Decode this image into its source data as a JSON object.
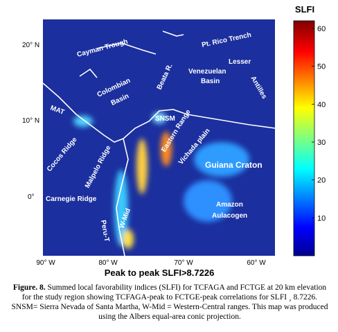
{
  "map": {
    "labels": [
      "Cayman Trough",
      "Pt. Rico Trench",
      "Lesser",
      "Antilles",
      "Venezuelan",
      "Basin",
      "Beata R.",
      "Colombian",
      "Basin",
      "MAT",
      "SNSM",
      "Cocos Ridge",
      "Malpelo Ridge",
      "Eastern Range",
      "Vichada plain",
      "Guiana Craton",
      "Carnegie Ridge",
      "Amazon",
      "Aulacogen",
      "Peru-T",
      "W-Mid"
    ],
    "lat_ticks": [
      "20° N",
      "10° N",
      "0°"
    ],
    "lon_ticks": [
      "90° W",
      "80° W",
      "70° W",
      "60° W"
    ],
    "bottom_label": "Peak to peak  SLFI>8.7226"
  },
  "colorbar": {
    "title": "SLFI",
    "lim": [
      0,
      62
    ],
    "ticks": [
      10,
      20,
      30,
      40,
      50,
      60
    ]
  },
  "caption": {
    "label": "Figure. 8.",
    "text": "Summed local favorability indices (SLFI) for TCFAGA and FCTGE at 20 km elevation for the study region showing TCFAGA-peak to FCTGE-peak correlations for SLFI ¸ 8.7226. SNSM= Sierra Nevada of Santa Martha, W-Mid = Western-Central ranges. This map was produced using the Albers equal-area conic projection."
  }
}
